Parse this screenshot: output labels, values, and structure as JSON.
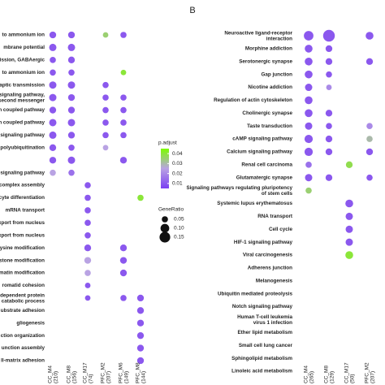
{
  "panel_label": "B",
  "chart_data": [
    {
      "type": "dot",
      "categories": [
        "to ammonium ion",
        "mbrane potential",
        "ission, GABAergic",
        "to ammonium ion",
        "aptic transmission",
        "signaling pathway, second messenger",
        "G-protein coupled pathway",
        "G-protein coupled pathway",
        "signaling pathway",
        "polyubiquitination",
        null,
        "signaling pathway",
        "complex assembly",
        "cyte differentiation",
        "mRNA transport",
        "xport from nucleus",
        "n complex export from nucleus",
        "ysine modification",
        "stone modification",
        "matin modification",
        "romatid cohesion",
        "dependent protein catabolic process",
        "ubstrate adhesion",
        "gliogenesis",
        "ction organization",
        "unction assembly",
        "ll-matrix adhesion"
      ],
      "series": [
        {
          "name": "CC_M4",
          "count": "(210)",
          "values": [
            0.06,
            0.07,
            0.05,
            0.05,
            0.07,
            0.07,
            0.06,
            0.07,
            0.07,
            0.06,
            0.06,
            0.05,
            null,
            null,
            null,
            null,
            null,
            null,
            null,
            null,
            null,
            null,
            null,
            null,
            null,
            null,
            null
          ],
          "padjust": [
            0.01,
            0.01,
            0.01,
            0.01,
            0.01,
            0.01,
            0.01,
            0.01,
            0.01,
            0.01,
            0.01,
            0.025,
            null,
            null,
            null,
            null,
            null,
            null,
            null,
            null,
            null,
            null,
            null,
            null,
            null,
            null,
            null
          ]
        },
        {
          "name": "CC_M8",
          "count": "(156)",
          "values": [
            0.06,
            0.07,
            0.06,
            0.05,
            0.07,
            0.06,
            0.06,
            0.07,
            0.06,
            0.05,
            0.07,
            0.05,
            null,
            null,
            null,
            null,
            null,
            null,
            null,
            null,
            null,
            null,
            null,
            null,
            null,
            null,
            null
          ],
          "padjust": [
            0.01,
            0.01,
            0.01,
            0.01,
            0.01,
            0.01,
            0.01,
            0.01,
            0.01,
            0.01,
            0.01,
            0.015,
            null,
            null,
            null,
            null,
            null,
            null,
            null,
            null,
            null,
            null,
            null,
            null,
            null,
            null,
            null
          ]
        },
        {
          "name": "CC_M17",
          "count": "(74)",
          "values": [
            null,
            null,
            null,
            null,
            null,
            null,
            null,
            null,
            null,
            null,
            null,
            null,
            0.05,
            0.05,
            0.05,
            0.05,
            0.05,
            0.06,
            0.06,
            0.05,
            0.04,
            0.04,
            null,
            null,
            null,
            null,
            null
          ],
          "padjust": [
            null,
            null,
            null,
            null,
            null,
            null,
            null,
            null,
            null,
            null,
            null,
            null,
            0.01,
            0.01,
            0.01,
            0.01,
            0.01,
            0.01,
            0.025,
            0.025,
            0.01,
            0.01,
            null,
            null,
            null,
            null,
            null
          ]
        },
        {
          "name": "PFC_M2",
          "count": "(207)",
          "values": [
            0.04,
            null,
            null,
            null,
            0.05,
            0.05,
            0.05,
            0.05,
            0.05,
            0.04,
            null,
            null,
            null,
            null,
            null,
            null,
            null,
            null,
            null,
            null,
            null,
            null,
            null,
            null,
            null,
            null,
            null
          ],
          "padjust": [
            0.035,
            null,
            null,
            null,
            0.01,
            0.01,
            0.01,
            0.01,
            0.01,
            0.025,
            null,
            null,
            null,
            null,
            null,
            null,
            null,
            null,
            null,
            null,
            null,
            null,
            null,
            null,
            null,
            null,
            null
          ]
        },
        {
          "name": "PFC_M6",
          "count": "(149)",
          "values": [
            0.05,
            null,
            null,
            0.04,
            null,
            0.05,
            0.05,
            0.05,
            0.05,
            null,
            0.06,
            null,
            null,
            null,
            null,
            null,
            null,
            0.06,
            0.06,
            0.06,
            null,
            0.05,
            null,
            null,
            null,
            null,
            null
          ],
          "padjust": [
            0.01,
            null,
            null,
            0.04,
            null,
            0.01,
            0.01,
            0.01,
            0.01,
            null,
            0.01,
            null,
            null,
            null,
            null,
            null,
            null,
            0.01,
            0.01,
            0.01,
            null,
            0.01,
            null,
            null,
            null,
            null,
            null
          ]
        },
        {
          "name": "PFC_M8",
          "count": "(144)",
          "values": [
            null,
            null,
            null,
            null,
            null,
            null,
            null,
            null,
            null,
            null,
            null,
            null,
            null,
            0.05,
            null,
            null,
            null,
            null,
            null,
            null,
            null,
            0.06,
            0.06,
            0.06,
            0.06,
            0.06,
            0.06
          ],
          "padjust": [
            null,
            null,
            null,
            null,
            null,
            null,
            null,
            null,
            null,
            null,
            null,
            null,
            null,
            0.04,
            null,
            null,
            null,
            null,
            null,
            null,
            null,
            0.01,
            0.01,
            0.01,
            0.01,
            0.01,
            0.01
          ]
        }
      ]
    },
    {
      "type": "dot",
      "categories": [
        "Neuroactive ligand-receptor interaction",
        "Morphine addiction",
        "Serotonergic synapse",
        "Gap junction",
        "Nicotine addiction",
        "Regulation of actin cytoskeleton",
        "Cholinergic synapse",
        "Taste transduction",
        "cAMP signaling pathway",
        "Calcium signaling pathway",
        "Renal cell carcinoma",
        "Glutamatergic synapse",
        "Signaling pathways regulating pluripotency of stem cells",
        "Systemic lupus erythematosus",
        "RNA transport",
        "Cell cycle",
        "HIF-1 signaling pathway",
        "Viral carcinogenesis",
        "Adherens junction",
        "Melanogenesis",
        "Ubiquitin mediated proteolysis",
        "Notch signaling pathway",
        "Human T-cell leukemia virus 1 infection",
        "Ether lipid metabolism",
        "Small cell lung cancer",
        "Sphingolipid metabolism",
        "Linoleic acid metabolism"
      ],
      "series": [
        {
          "name": "CC_M4",
          "count": "(265)",
          "values": [
            0.12,
            0.08,
            0.08,
            0.08,
            0.07,
            0.08,
            0.08,
            0.07,
            0.09,
            0.09,
            0.05,
            0.07,
            0.05,
            null,
            null,
            null,
            null,
            null,
            null,
            null,
            null,
            null,
            null,
            null,
            null,
            null,
            null
          ],
          "padjust": [
            0.01,
            0.01,
            0.01,
            0.01,
            0.01,
            0.01,
            0.01,
            0.01,
            0.01,
            0.01,
            0.015,
            0.01,
            0.035,
            null,
            null,
            null,
            null,
            null,
            null,
            null,
            null,
            null,
            null,
            null,
            null,
            null,
            null
          ]
        },
        {
          "name": "CC_M8",
          "count": "(129)",
          "values": [
            0.18,
            0.06,
            0.06,
            0.05,
            0.04,
            null,
            0.06,
            0.05,
            0.06,
            0.06,
            null,
            0.06,
            null,
            null,
            null,
            null,
            null,
            null,
            null,
            null,
            null,
            null,
            null,
            null,
            null,
            null,
            null
          ],
          "padjust": [
            0.01,
            0.01,
            0.01,
            0.01,
            0.02,
            null,
            0.01,
            0.01,
            0.01,
            0.01,
            null,
            0.01,
            null,
            null,
            null,
            null,
            null,
            null,
            null,
            null,
            null,
            null,
            null,
            null,
            null,
            null,
            null
          ]
        },
        {
          "name": "CC_M17",
          "count": "(50)",
          "values": [
            null,
            null,
            null,
            null,
            null,
            null,
            null,
            null,
            null,
            null,
            0.06,
            null,
            null,
            0.08,
            0.07,
            0.07,
            0.07,
            0.08,
            null,
            null,
            null,
            null,
            null,
            null,
            null,
            null,
            null
          ],
          "padjust": [
            null,
            null,
            null,
            null,
            null,
            null,
            null,
            null,
            null,
            null,
            0.038,
            null,
            null,
            0.01,
            0.01,
            0.01,
            0.01,
            0.04,
            null,
            null,
            null,
            null,
            null,
            null,
            null,
            null,
            null
          ]
        },
        {
          "name": "PFC_M2",
          "count": "(207)",
          "values": [
            0.08,
            null,
            0.06,
            null,
            null,
            null,
            null,
            0.05,
            0.05,
            0.06,
            null,
            0.05,
            null,
            null,
            null,
            null,
            null,
            null,
            null,
            null,
            null,
            null,
            null,
            null,
            null,
            null,
            null
          ],
          "padjust": [
            0.01,
            null,
            0.01,
            null,
            null,
            null,
            null,
            0.02,
            0.03,
            0.01,
            null,
            0.01,
            null,
            null,
            null,
            null,
            null,
            null,
            null,
            null,
            null,
            null,
            null,
            null,
            null,
            null,
            null
          ]
        }
      ]
    }
  ],
  "color_legend": {
    "title": "p.adjust",
    "clim": [
      0.005,
      0.045
    ],
    "ticks": [
      0.04,
      0.03,
      0.02,
      0.01
    ],
    "colorscale": [
      "#7b3ff2",
      "#b9a3e3",
      "#7cfc00"
    ]
  },
  "size_legend": {
    "title": "GeneRatio",
    "ticks": [
      0.05,
      0.1,
      0.15
    ],
    "labels": [
      "0.05",
      "0.10",
      "0.15"
    ]
  }
}
